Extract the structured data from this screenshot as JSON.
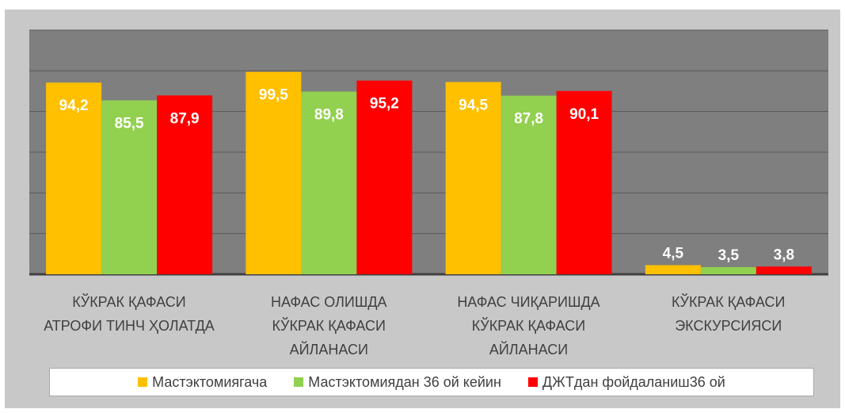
{
  "chart_data": {
    "type": "bar",
    "categories": [
      "КЎКРАК ҚАФАСИ\nАТРОФИ ТИНЧ ҲОЛАТДА",
      "НАФАС ОЛИШДА\nКЎКРАК ҚАФАСИ\nАЙЛАНАСИ",
      "НАФАС ЧИҚАРИШДА\nКЎКРАК ҚАФАСИ\nАЙЛАНАСИ",
      "КЎКРАК ҚАФАСИ\nЭКСКУРСИЯСИ"
    ],
    "series": [
      {
        "name": "Мастэктомиягача",
        "color": "#ffc000",
        "values": [
          94.2,
          99.5,
          94.5,
          4.5
        ],
        "value_labels": [
          "94,2",
          "99,5",
          "94,5",
          "4,5"
        ]
      },
      {
        "name": "Мастэктомиядан 36 ой кейин",
        "color": "#92d050",
        "values": [
          85.5,
          89.8,
          87.8,
          3.5
        ],
        "value_labels": [
          "85,5",
          "89,8",
          "87,8",
          "3,5"
        ]
      },
      {
        "name": "ДЖТдан фойдаланиш36 ой",
        "color": "#ff0000",
        "values": [
          87.9,
          95.2,
          90.1,
          3.8
        ],
        "value_labels": [
          "87,9",
          "95,2",
          "90,1",
          "3,8"
        ]
      }
    ],
    "ylim": [
      0,
      120
    ],
    "yticks": [
      0,
      20,
      40,
      60,
      80,
      100,
      120
    ],
    "grid": true,
    "legend": "bottom"
  }
}
